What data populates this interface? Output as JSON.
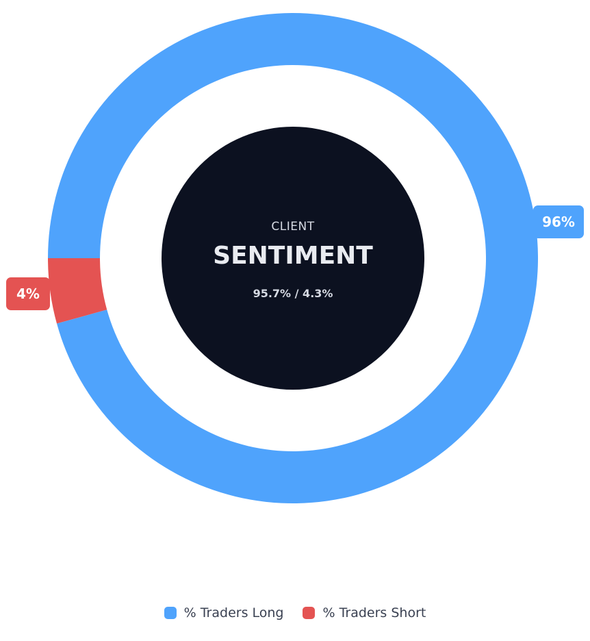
{
  "chart_data": {
    "type": "pie",
    "style": "donut",
    "title": "",
    "center": {
      "label_top": "CLIENT",
      "label_main": "SENTIMENT",
      "ratio_text": "95.7% / 4.3%"
    },
    "categories": [
      "% Traders Long",
      "% Traders Short"
    ],
    "values": [
      95.7,
      4.3
    ],
    "data_labels": [
      "96%",
      "4%"
    ],
    "colors": [
      "#4fa3fc",
      "#e45352"
    ],
    "center_color": "#0c1120",
    "legend": {
      "position": "bottom-center",
      "entries": [
        "% Traders Long",
        "% Traders Short"
      ]
    }
  }
}
